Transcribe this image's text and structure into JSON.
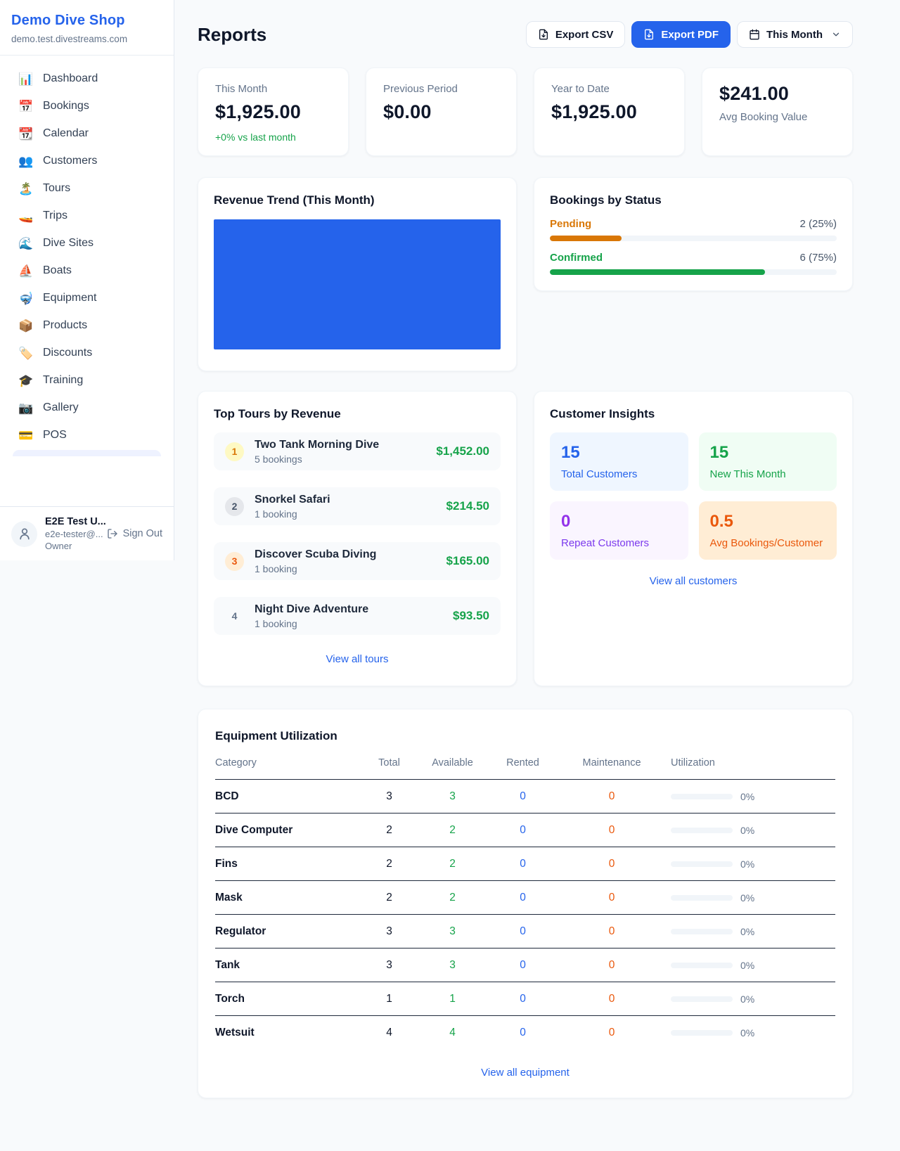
{
  "colors": {
    "accent": "#2563eb",
    "positive_green": "#16a34a",
    "pending_amber": "#d97706",
    "maintenance_orange": "#ea580c",
    "repeat_purple": "#9333ea",
    "background": "#f8fafc"
  },
  "sidebar": {
    "brand": {
      "name": "Demo Dive Shop",
      "domain": "demo.test.divestreams.com"
    },
    "items": [
      {
        "icon": "📊",
        "label": "Dashboard"
      },
      {
        "icon": "📅",
        "label": "Bookings"
      },
      {
        "icon": "📆",
        "label": "Calendar"
      },
      {
        "icon": "👥",
        "label": "Customers"
      },
      {
        "icon": "🏝️",
        "label": "Tours"
      },
      {
        "icon": "🚤",
        "label": "Trips"
      },
      {
        "icon": "🌊",
        "label": "Dive Sites"
      },
      {
        "icon": "⛵",
        "label": "Boats"
      },
      {
        "icon": "🤿",
        "label": "Equipment"
      },
      {
        "icon": "📦",
        "label": "Products"
      },
      {
        "icon": "🏷️",
        "label": "Discounts"
      },
      {
        "icon": "🎓",
        "label": "Training"
      },
      {
        "icon": "📷",
        "label": "Gallery"
      },
      {
        "icon": "💳",
        "label": "POS"
      }
    ],
    "user": {
      "name": "E2E Test U...",
      "email": "e2e-tester@...",
      "role": "Owner",
      "sign_out": "Sign Out"
    }
  },
  "header": {
    "title": "Reports",
    "export_csv": "Export CSV",
    "export_pdf": "Export PDF",
    "period": "This Month"
  },
  "stats": [
    {
      "label": "This Month",
      "value": "$1,925.00",
      "delta": "+0% vs last month"
    },
    {
      "label": "Previous Period",
      "value": "$0.00"
    },
    {
      "label": "Year to Date",
      "value": "$1,925.00"
    },
    {
      "label": "Avg Booking Value",
      "value": "$241.00"
    }
  ],
  "panels": {
    "revenue_trend": {
      "title": "Revenue Trend (This Month)"
    },
    "bookings_by_status": {
      "title": "Bookings by Status",
      "rows": [
        {
          "label": "Pending",
          "value": "2 (25%)",
          "pct": 25
        },
        {
          "label": "Confirmed",
          "value": "6 (75%)",
          "pct": 75
        }
      ]
    },
    "top_tours": {
      "title": "Top Tours by Revenue",
      "rows": [
        {
          "rank": "1",
          "name": "Two Tank Morning Dive",
          "bookings": "5 bookings",
          "revenue": "$1,452.00"
        },
        {
          "rank": "2",
          "name": "Snorkel Safari",
          "bookings": "1 booking",
          "revenue": "$214.50"
        },
        {
          "rank": "3",
          "name": "Discover Scuba Diving",
          "bookings": "1 booking",
          "revenue": "$165.00"
        },
        {
          "rank": "4",
          "name": "Night Dive Adventure",
          "bookings": "1 booking",
          "revenue": "$93.50"
        }
      ],
      "view_all": "View all tours"
    },
    "customer_insights": {
      "title": "Customer Insights",
      "tiles": [
        {
          "value": "15",
          "label": "Total Customers"
        },
        {
          "value": "15",
          "label": "New This Month"
        },
        {
          "value": "0",
          "label": "Repeat Customers"
        },
        {
          "value": "0.5",
          "label": "Avg Bookings/Customer"
        }
      ],
      "view_all": "View all customers"
    },
    "equipment": {
      "title": "Equipment Utilization",
      "columns": [
        "Category",
        "Total",
        "Available",
        "Rented",
        "Maintenance",
        "Utilization"
      ],
      "rows": [
        {
          "category": "BCD",
          "total": "3",
          "available": "3",
          "rented": "0",
          "maintenance": "0",
          "utilization": "0%",
          "pct": 0
        },
        {
          "category": "Dive Computer",
          "total": "2",
          "available": "2",
          "rented": "0",
          "maintenance": "0",
          "utilization": "0%",
          "pct": 0
        },
        {
          "category": "Fins",
          "total": "2",
          "available": "2",
          "rented": "0",
          "maintenance": "0",
          "utilization": "0%",
          "pct": 0
        },
        {
          "category": "Mask",
          "total": "2",
          "available": "2",
          "rented": "0",
          "maintenance": "0",
          "utilization": "0%",
          "pct": 0
        },
        {
          "category": "Regulator",
          "total": "3",
          "available": "3",
          "rented": "0",
          "maintenance": "0",
          "utilization": "0%",
          "pct": 0
        },
        {
          "category": "Tank",
          "total": "3",
          "available": "3",
          "rented": "0",
          "maintenance": "0",
          "utilization": "0%",
          "pct": 0
        },
        {
          "category": "Torch",
          "total": "1",
          "available": "1",
          "rented": "0",
          "maintenance": "0",
          "utilization": "0%",
          "pct": 0
        },
        {
          "category": "Wetsuit",
          "total": "4",
          "available": "4",
          "rented": "0",
          "maintenance": "0",
          "utilization": "0%",
          "pct": 0
        }
      ],
      "view_all": "View all equipment"
    }
  },
  "chart_data": {
    "type": "bar",
    "title": "Revenue Trend (This Month)",
    "categories": [
      ""
    ],
    "values": [
      1925
    ],
    "series_color": "#2563eb",
    "xlabel": "",
    "ylabel": "",
    "legend": "none",
    "grid": false,
    "note_layout": "single bar fills entire plot area; no visible axes or tick labels"
  }
}
